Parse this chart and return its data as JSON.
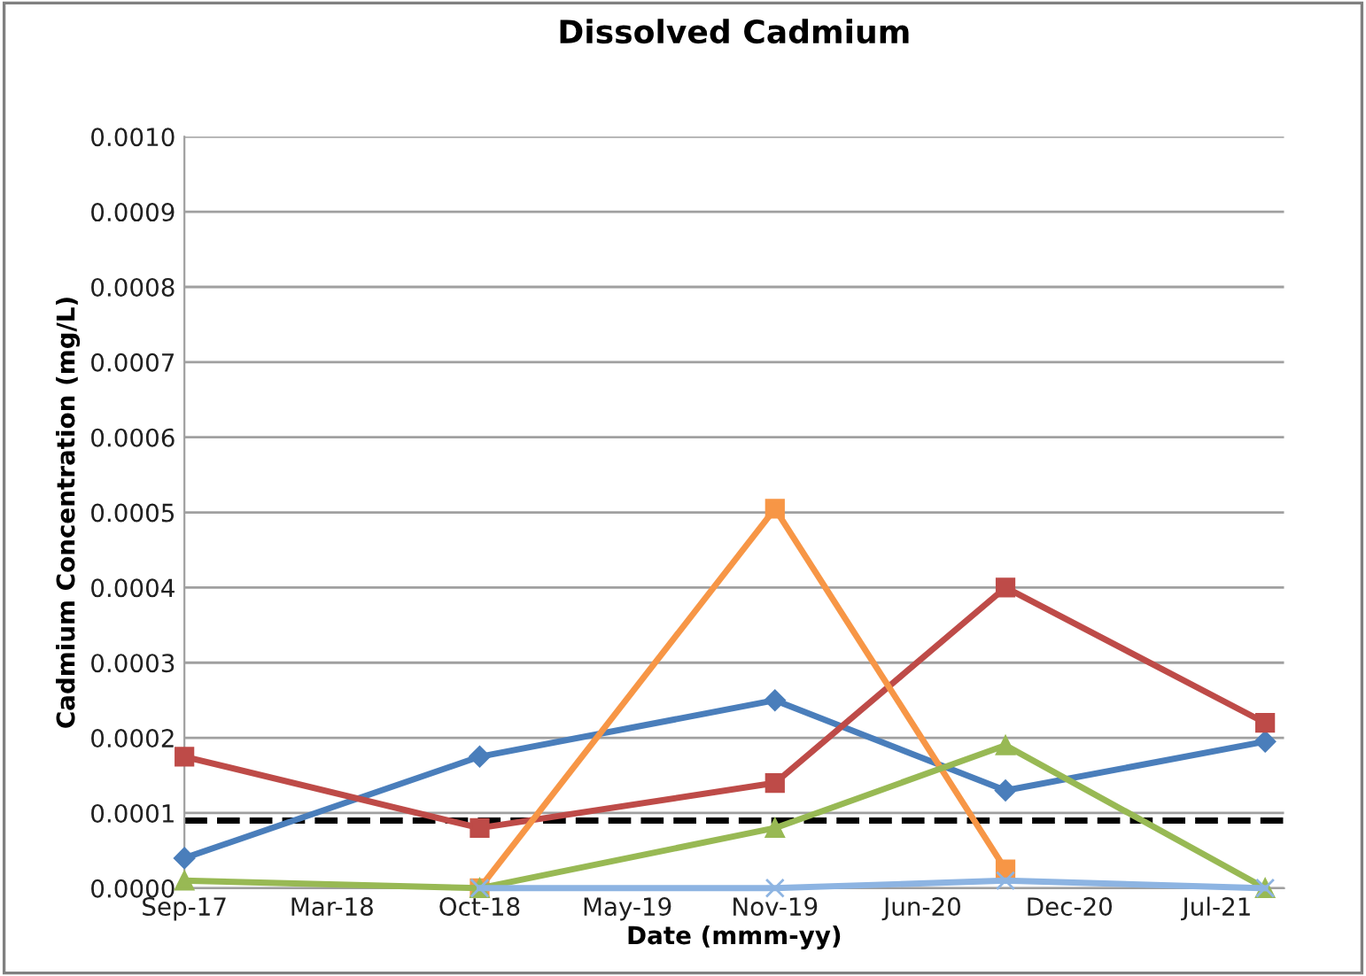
{
  "chart_data": {
    "type": "line",
    "title": "Dissolved Cadmium",
    "xlabel": "Date (mmm-yy)",
    "ylabel": "Cadmium Concentration (mg/L)",
    "xlim": [
      "2017-09-01",
      "2021-10-22"
    ],
    "ylim": [
      0,
      0.001
    ],
    "xticks": [
      {
        "value": "2017-09-01",
        "label": "Sep-17"
      },
      {
        "value": "2018-03-23",
        "label": "Mar-18"
      },
      {
        "value": "2018-10-12",
        "label": "Oct-18"
      },
      {
        "value": "2019-05-03",
        "label": "May-19"
      },
      {
        "value": "2019-11-22",
        "label": "Nov-19"
      },
      {
        "value": "2020-06-12",
        "label": "Jun-20"
      },
      {
        "value": "2020-12-31",
        "label": "Dec-20"
      },
      {
        "value": "2021-07-22",
        "label": "Jul-21"
      }
    ],
    "yticks": [
      {
        "value": 0,
        "label": "0.0000"
      },
      {
        "value": 0.0001,
        "label": "0.0001"
      },
      {
        "value": 0.0002,
        "label": "0.0002"
      },
      {
        "value": 0.0003,
        "label": "0.0003"
      },
      {
        "value": 0.0004,
        "label": "0.0004"
      },
      {
        "value": 0.0005,
        "label": "0.0005"
      },
      {
        "value": 0.0006,
        "label": "0.0006"
      },
      {
        "value": 0.0007,
        "label": "0.0007"
      },
      {
        "value": 0.0008,
        "label": "0.0008"
      },
      {
        "value": 0.0009,
        "label": "0.0009"
      },
      {
        "value": 0.001,
        "label": "0.0010"
      }
    ],
    "grid": "y",
    "series": [
      {
        "color": "#4a7ebb",
        "marker": "diamond",
        "x": [
          "2017-09-01",
          "2018-10-12",
          "2019-11-22",
          "2020-10-04",
          "2021-09-26"
        ],
        "values": [
          4e-05,
          0.000175,
          0.00025,
          0.00013,
          0.000195
        ]
      },
      {
        "color": "#be4b48",
        "marker": "square",
        "x": [
          "2017-09-01",
          "2018-10-12",
          "2019-11-22",
          "2020-10-04",
          "2021-09-26"
        ],
        "values": [
          0.000175,
          8e-05,
          0.00014,
          0.0004,
          0.00022
        ]
      },
      {
        "color": "#f79646",
        "marker": "square",
        "x": [
          "2018-10-12",
          "2019-11-22",
          "2020-10-04"
        ],
        "values": [
          0,
          0.000505,
          2.5e-05
        ]
      },
      {
        "color": "#98b954",
        "marker": "triangle",
        "x": [
          "2017-09-01",
          "2018-10-12",
          "2019-11-22",
          "2020-10-04",
          "2021-09-26"
        ],
        "values": [
          1e-05,
          0,
          8e-05,
          0.00019,
          0
        ]
      },
      {
        "color": "#8db4e2",
        "marker": "cross",
        "x": [
          "2018-10-12",
          "2019-11-22",
          "2020-10-04",
          "2021-09-26"
        ],
        "values": [
          0,
          0,
          1e-05,
          0
        ]
      }
    ],
    "ref_lines": [
      {
        "axis": "y",
        "value": 9e-05,
        "color": "#000000",
        "line_style": "dashed"
      }
    ]
  }
}
